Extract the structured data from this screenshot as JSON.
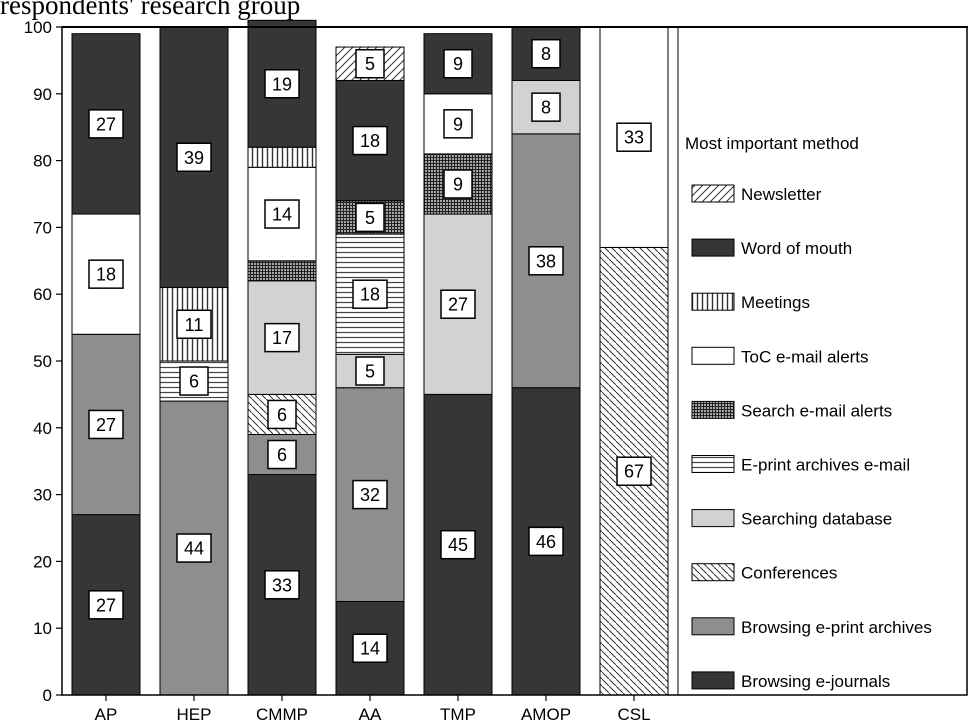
{
  "caption": "respondents' research group",
  "legend_title": "Most important method",
  "chart_data": {
    "type": "bar",
    "stacked": true,
    "categories": [
      "AP",
      "HEP",
      "CMMP",
      "AA",
      "TMP",
      "AMOP",
      "CSL"
    ],
    "ylim": [
      0,
      100
    ],
    "yticks": [
      0,
      10,
      20,
      30,
      40,
      50,
      60,
      70,
      80,
      90,
      100
    ],
    "legend_placement": "right",
    "grid": false,
    "series": [
      {
        "name": "Browsing e-journals",
        "pattern": "dark",
        "values": [
          27,
          0,
          33,
          14,
          45,
          46,
          0
        ],
        "labels": [
          "27",
          null,
          "33",
          "14",
          "45",
          "46",
          null
        ]
      },
      {
        "name": "Browsing e-print archives",
        "pattern": "mid-gray",
        "values": [
          27,
          44,
          6,
          32,
          0,
          38,
          0
        ],
        "labels": [
          "27",
          "44",
          "6",
          "32",
          null,
          "38",
          null
        ]
      },
      {
        "name": "Conferences",
        "pattern": "diagonal-dense",
        "values": [
          0,
          0,
          6,
          0,
          0,
          0,
          67
        ],
        "labels": [
          null,
          null,
          "6",
          null,
          null,
          null,
          "67"
        ]
      },
      {
        "name": "Searching database",
        "pattern": "light-gray",
        "values": [
          0,
          0,
          17,
          5,
          27,
          8,
          0
        ],
        "labels": [
          null,
          null,
          "17",
          "5",
          "27",
          "8",
          null
        ]
      },
      {
        "name": "E-print archives e-mail",
        "pattern": "horizontal",
        "values": [
          0,
          6,
          0,
          18,
          0,
          0,
          0
        ],
        "labels": [
          null,
          "6",
          null,
          "18",
          null,
          null,
          null
        ]
      },
      {
        "name": "Search e-mail alerts",
        "pattern": "checker",
        "values": [
          0,
          0,
          3,
          5,
          9,
          0,
          0
        ],
        "labels": [
          null,
          null,
          null,
          "5",
          "9",
          null,
          null
        ]
      },
      {
        "name": "ToC e-mail alerts",
        "pattern": "white",
        "values": [
          18,
          0,
          14,
          0,
          9,
          0,
          33
        ],
        "labels": [
          "18",
          null,
          "14",
          null,
          "9",
          null,
          "33"
        ]
      },
      {
        "name": "Meetings",
        "pattern": "vertical",
        "values": [
          0,
          11,
          3,
          0,
          0,
          0,
          0
        ],
        "labels": [
          null,
          "11",
          null,
          null,
          null,
          null,
          null
        ]
      },
      {
        "name": "Word of mouth",
        "pattern": "dark",
        "values": [
          27,
          39,
          19,
          18,
          9,
          8,
          0
        ],
        "labels": [
          "27",
          "39",
          "19",
          "18",
          "9",
          "8",
          null
        ]
      },
      {
        "name": "Newsletter",
        "pattern": "diagonal",
        "values": [
          0,
          0,
          0,
          5,
          0,
          0,
          0
        ],
        "labels": [
          null,
          null,
          null,
          "5",
          null,
          null,
          null
        ]
      }
    ],
    "legend_order": [
      "Newsletter",
      "Word of mouth",
      "Meetings",
      "ToC e-mail alerts",
      "Search e-mail alerts",
      "E-print archives e-mail",
      "Searching database",
      "Conferences",
      "Browsing e-print archives",
      "Browsing e-journals"
    ]
  }
}
